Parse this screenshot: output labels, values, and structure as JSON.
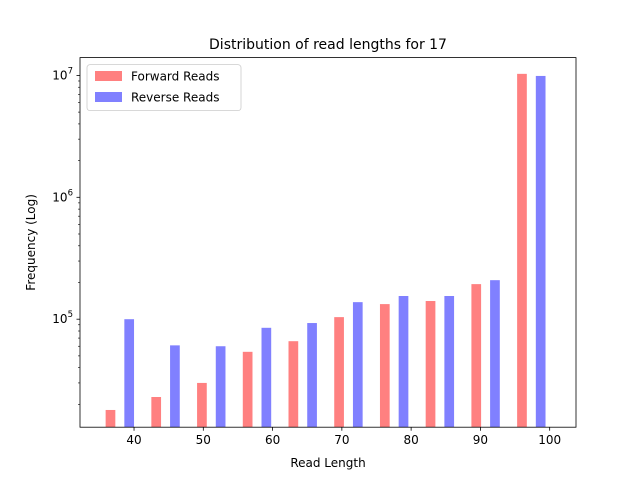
{
  "chart_data": {
    "type": "bar",
    "title": "Distribution of read lengths for 17",
    "xlabel": "Read Length",
    "ylabel": "Frequency (Log)",
    "yscale": "log",
    "xlim": [
      32.2,
      103.8
    ],
    "ylim": [
      13000,
      14000000
    ],
    "grid": false,
    "legend_position": "upper-left",
    "x_ticks": [
      40,
      50,
      60,
      70,
      80,
      90,
      100
    ],
    "y_ticks": [
      {
        "value": 100000,
        "base": "10",
        "exp": "5"
      },
      {
        "value": 1000000,
        "base": "10",
        "exp": "6"
      },
      {
        "value": 10000000,
        "base": "10",
        "exp": "7"
      }
    ],
    "bar_width": 1.4,
    "series": [
      {
        "name": "Forward Reads",
        "color": "#ff8080",
        "points": [
          {
            "x": 36.6,
            "y": 18000
          },
          {
            "x": 43.2,
            "y": 23000
          },
          {
            "x": 49.8,
            "y": 30000
          },
          {
            "x": 56.4,
            "y": 54000
          },
          {
            "x": 63.0,
            "y": 66000
          },
          {
            "x": 69.6,
            "y": 104000
          },
          {
            "x": 76.2,
            "y": 133000
          },
          {
            "x": 82.8,
            "y": 141000
          },
          {
            "x": 89.4,
            "y": 194000
          },
          {
            "x": 96.0,
            "y": 10300000
          }
        ]
      },
      {
        "name": "Reverse Reads",
        "color": "#8080ff",
        "points": [
          {
            "x": 39.3,
            "y": 100000
          },
          {
            "x": 45.9,
            "y": 61000
          },
          {
            "x": 52.5,
            "y": 60000
          },
          {
            "x": 59.1,
            "y": 85000
          },
          {
            "x": 65.7,
            "y": 93000
          },
          {
            "x": 72.3,
            "y": 138000
          },
          {
            "x": 78.9,
            "y": 155000
          },
          {
            "x": 85.5,
            "y": 155000
          },
          {
            "x": 92.1,
            "y": 209000
          },
          {
            "x": 98.7,
            "y": 9900000
          }
        ]
      }
    ]
  }
}
